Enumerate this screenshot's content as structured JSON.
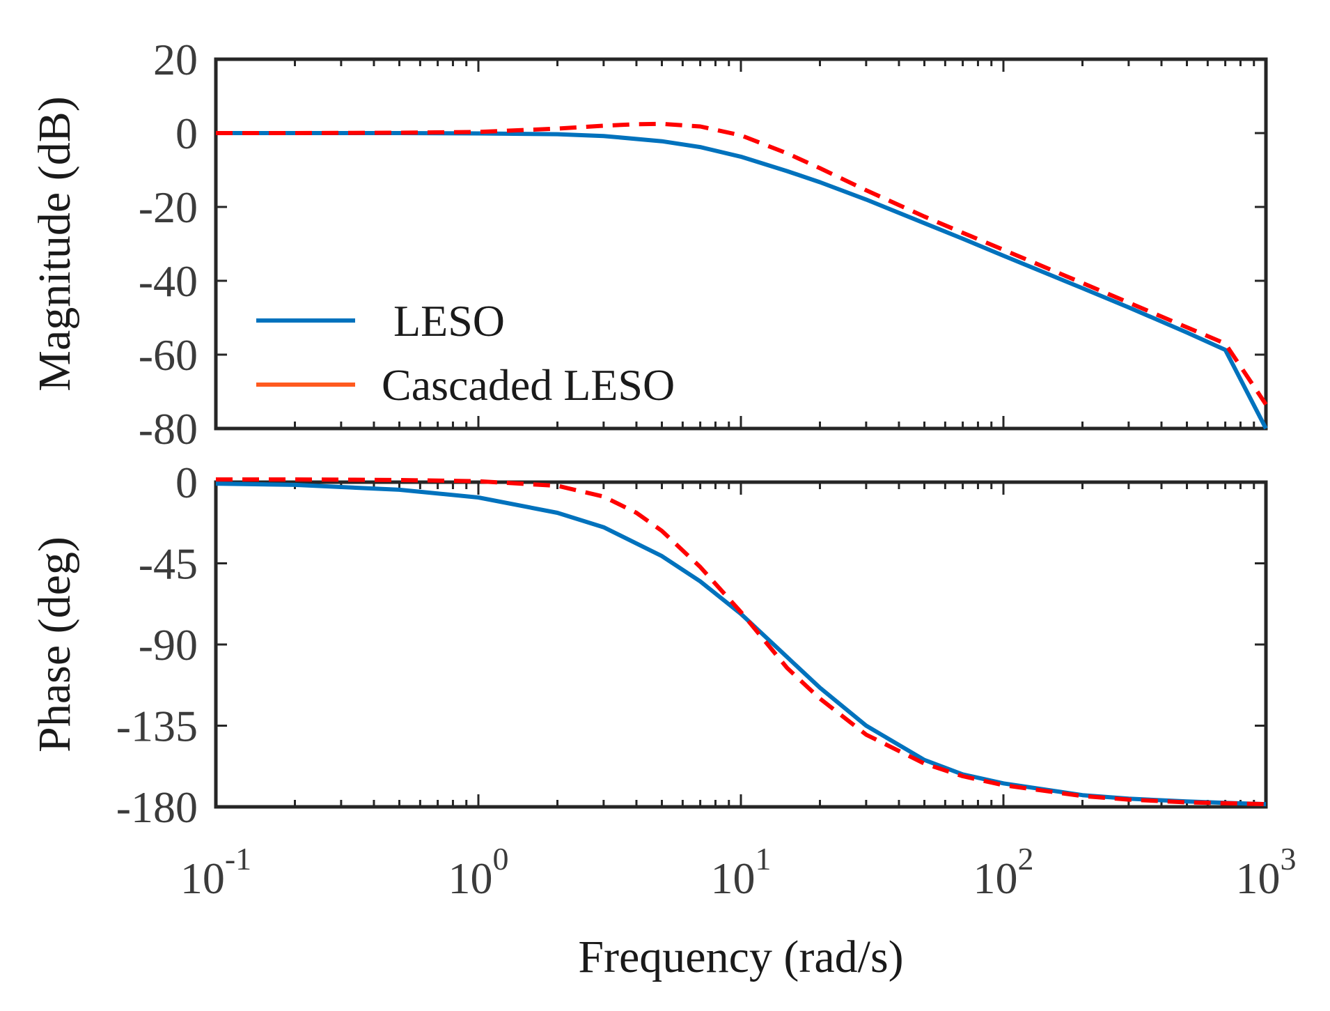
{
  "chart_data": {
    "type": "line",
    "subplots": [
      {
        "id": "magnitude",
        "ylabel": "Magnitude (dB)",
        "ylim": [
          -80,
          20
        ],
        "yticks": [
          20,
          0,
          -20,
          -40,
          -60,
          -80
        ],
        "ytick_labels": [
          "20",
          "0",
          "-20",
          "-40",
          "-60",
          "-80"
        ],
        "xscale": "log",
        "xlim": [
          0.1,
          1000
        ],
        "series": [
          {
            "name": "LESO",
            "color": "#0072BD",
            "dash": "solid",
            "x": [
              0.1,
              0.2,
              0.5,
              1,
              2,
              3,
              5,
              7,
              10,
              15,
              20,
              30,
              50,
              70,
              100,
              200,
              300,
              500,
              700,
              1000
            ],
            "y": [
              0,
              0,
              0,
              -0.1,
              -0.3,
              -0.8,
              -2.2,
              -3.8,
              -6.4,
              -10.3,
              -13.3,
              -18,
              -24.4,
              -28.6,
              -33.2,
              -42,
              -47.2,
              -54,
              -58.7,
              -80
            ]
          },
          {
            "name": "Cascaded LESO",
            "color": "#FF0000",
            "dash": "dashed",
            "x": [
              0.1,
              0.2,
              0.5,
              1,
              2,
              3,
              4,
              5,
              7,
              10,
              15,
              20,
              30,
              50,
              70,
              100,
              200,
              300,
              500,
              700,
              1000
            ],
            "y": [
              0,
              0,
              0.1,
              0.3,
              1.2,
              2.0,
              2.4,
              2.5,
              1.8,
              -0.6,
              -5.5,
              -9.5,
              -15.5,
              -22.6,
              -27,
              -31.6,
              -40.6,
              -45.9,
              -52.6,
              -57,
              -73.5
            ]
          }
        ],
        "legend": {
          "location": "lower-left",
          "entries": [
            {
              "label": "LESO",
              "color": "#0072BD"
            },
            {
              "label": "Cascaded LESO",
              "color": "#FF5A1F"
            }
          ]
        }
      },
      {
        "id": "phase",
        "ylabel": "Phase (deg)",
        "ylim": [
          -180,
          0
        ],
        "yticks": [
          0,
          -45,
          -90,
          -135,
          -180
        ],
        "ytick_labels": [
          "0",
          "-45",
          "-90",
          "-135",
          "-180"
        ],
        "xscale": "log",
        "xlim": [
          0.1,
          1000
        ],
        "xticks": [
          0.1,
          1,
          10,
          100,
          1000
        ],
        "xtick_labels": [
          {
            "base": "10",
            "exp": "-1"
          },
          {
            "base": "10",
            "exp": "0"
          },
          {
            "base": "10",
            "exp": "1"
          },
          {
            "base": "10",
            "exp": "2"
          },
          {
            "base": "10",
            "exp": "3"
          }
        ],
        "xlabel": "Frequency (rad/s)",
        "series": [
          {
            "name": "LESO",
            "color": "#0072BD",
            "dash": "solid",
            "x": [
              0.1,
              0.2,
              0.5,
              1,
              2,
              3,
              5,
              7,
              10,
              15,
              20,
              30,
              50,
              70,
              100,
              200,
              300,
              500,
              700,
              1000
            ],
            "y": [
              -0.8,
              -1.5,
              -4.2,
              -8.5,
              -17,
              -25,
              -41,
              -55,
              -73,
              -97,
              -114,
              -135,
              -154,
              -162,
              -167,
              -173.5,
              -175.5,
              -177,
              -177.8,
              -178.5
            ]
          },
          {
            "name": "Cascaded LESO",
            "color": "#FF0000",
            "dash": "dashed",
            "x": [
              0.1,
              0.2,
              0.5,
              1,
              2,
              3,
              4,
              5,
              7,
              10,
              15,
              20,
              30,
              50,
              70,
              100,
              200,
              300,
              500,
              700,
              1000
            ],
            "y": [
              1.5,
              1.5,
              1.2,
              0.5,
              -2,
              -8,
              -17,
              -27,
              -47,
              -72,
              -103,
              -120,
              -140,
              -156,
              -163,
              -168,
              -174,
              -176,
              -177.5,
              -178,
              -178.5
            ]
          }
        ]
      }
    ]
  }
}
